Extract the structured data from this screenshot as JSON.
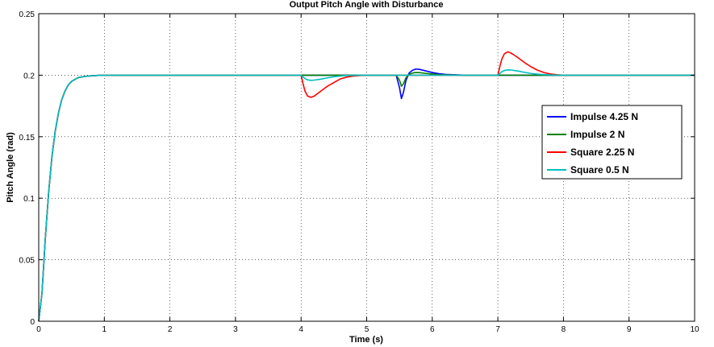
{
  "chart_data": {
    "type": "line",
    "title": "Output Pitch Angle with Disturbance",
    "xlabel": "Time (s)",
    "ylabel": "Pitch Angle (rad)",
    "xlim": [
      0,
      10
    ],
    "ylim": [
      0,
      0.25
    ],
    "xticks": [
      0,
      1,
      2,
      3,
      4,
      5,
      6,
      7,
      8,
      9,
      10
    ],
    "yticks": [
      0,
      0.05,
      0.1,
      0.15,
      0.2,
      0.25
    ],
    "xtick_labels": [
      "0",
      "1",
      "2",
      "3",
      "4",
      "5",
      "6",
      "7",
      "8",
      "9",
      "10"
    ],
    "ytick_labels": [
      "0",
      "0.05",
      "0.1",
      "0.15",
      "0.2",
      "0.25"
    ],
    "grid": true,
    "legend_position": "right",
    "series": [
      {
        "name": "Impulse 4.25 N",
        "color": "#0000ff",
        "x": [
          0,
          0.05,
          0.1,
          0.15,
          0.2,
          0.25,
          0.3,
          0.35,
          0.4,
          0.45,
          0.5,
          0.6,
          0.7,
          0.8,
          0.9,
          1.0,
          1.1,
          1.2,
          5.3,
          5.45,
          5.5,
          5.53,
          5.56,
          5.6,
          5.65,
          5.7,
          5.75,
          5.8,
          5.9,
          6.0,
          6.1,
          6.2,
          6.5,
          10
        ],
        "y": [
          0,
          0.023,
          0.067,
          0.104,
          0.133,
          0.154,
          0.169,
          0.18,
          0.187,
          0.192,
          0.195,
          0.198,
          0.199,
          0.1995,
          0.1998,
          0.1999,
          0.2,
          0.2,
          0.2,
          0.2,
          0.19,
          0.181,
          0.186,
          0.196,
          0.202,
          0.204,
          0.205,
          0.2048,
          0.2035,
          0.2022,
          0.2012,
          0.2006,
          0.2,
          0.2
        ]
      },
      {
        "name": "Impulse 2 N",
        "color": "#008000",
        "x": [
          0,
          0.05,
          0.1,
          0.15,
          0.2,
          0.25,
          0.3,
          0.35,
          0.4,
          0.45,
          0.5,
          0.6,
          0.7,
          0.8,
          0.9,
          1.0,
          1.1,
          1.2,
          5.3,
          5.45,
          5.5,
          5.53,
          5.56,
          5.6,
          5.65,
          5.7,
          5.75,
          5.8,
          5.9,
          6.0,
          6.1,
          6.2,
          6.5,
          10
        ],
        "y": [
          0,
          0.023,
          0.067,
          0.104,
          0.133,
          0.154,
          0.169,
          0.18,
          0.187,
          0.192,
          0.195,
          0.198,
          0.199,
          0.1995,
          0.1998,
          0.1999,
          0.2,
          0.2,
          0.2,
          0.2,
          0.196,
          0.191,
          0.193,
          0.198,
          0.2008,
          0.2018,
          0.2022,
          0.2021,
          0.2015,
          0.201,
          0.2005,
          0.2003,
          0.2,
          0.2
        ]
      },
      {
        "name": "Square 2.25 N",
        "color": "#ff0000",
        "x": [
          0,
          0.05,
          0.1,
          0.15,
          0.2,
          0.25,
          0.3,
          0.35,
          0.4,
          0.45,
          0.5,
          0.6,
          0.7,
          0.8,
          0.9,
          1.0,
          1.1,
          1.2,
          4.0,
          4.03,
          4.06,
          4.1,
          4.15,
          4.2,
          4.3,
          4.4,
          4.5,
          4.6,
          4.7,
          4.8,
          4.9,
          5.0,
          7.0,
          7.03,
          7.06,
          7.1,
          7.15,
          7.2,
          7.3,
          7.4,
          7.5,
          7.6,
          7.7,
          7.8,
          7.9,
          8.0,
          10
        ],
        "y": [
          0,
          0.023,
          0.067,
          0.104,
          0.133,
          0.154,
          0.169,
          0.18,
          0.187,
          0.192,
          0.195,
          0.198,
          0.199,
          0.1995,
          0.1998,
          0.1999,
          0.2,
          0.2,
          0.2,
          0.193,
          0.187,
          0.183,
          0.182,
          0.183,
          0.187,
          0.191,
          0.194,
          0.197,
          0.1985,
          0.1993,
          0.1997,
          0.2,
          0.2,
          0.207,
          0.213,
          0.2175,
          0.219,
          0.218,
          0.2145,
          0.2105,
          0.207,
          0.2042,
          0.2022,
          0.201,
          0.2004,
          0.2,
          0.2
        ]
      },
      {
        "name": "Square 0.5 N",
        "color": "#00bfbf",
        "x": [
          0,
          0.05,
          0.1,
          0.15,
          0.2,
          0.25,
          0.3,
          0.35,
          0.4,
          0.45,
          0.5,
          0.6,
          0.7,
          0.8,
          0.9,
          1.0,
          1.1,
          1.2,
          4.0,
          4.03,
          4.06,
          4.1,
          4.15,
          4.2,
          4.3,
          4.4,
          4.5,
          4.6,
          4.7,
          4.8,
          4.9,
          5.0,
          7.0,
          7.03,
          7.06,
          7.1,
          7.15,
          7.2,
          7.3,
          7.4,
          7.5,
          7.6,
          7.7,
          7.8,
          7.9,
          8.0,
          10
        ],
        "y": [
          0,
          0.023,
          0.067,
          0.104,
          0.133,
          0.154,
          0.169,
          0.18,
          0.187,
          0.192,
          0.195,
          0.198,
          0.199,
          0.1995,
          0.1998,
          0.1999,
          0.2,
          0.2,
          0.2,
          0.1985,
          0.1972,
          0.1962,
          0.1958,
          0.196,
          0.1968,
          0.1978,
          0.1987,
          0.1993,
          0.1997,
          0.1999,
          0.2,
          0.2,
          0.2,
          0.2015,
          0.2028,
          0.2038,
          0.2043,
          0.2042,
          0.2034,
          0.2024,
          0.2015,
          0.2009,
          0.2005,
          0.2002,
          0.2001,
          0.2,
          0.2
        ]
      }
    ]
  }
}
